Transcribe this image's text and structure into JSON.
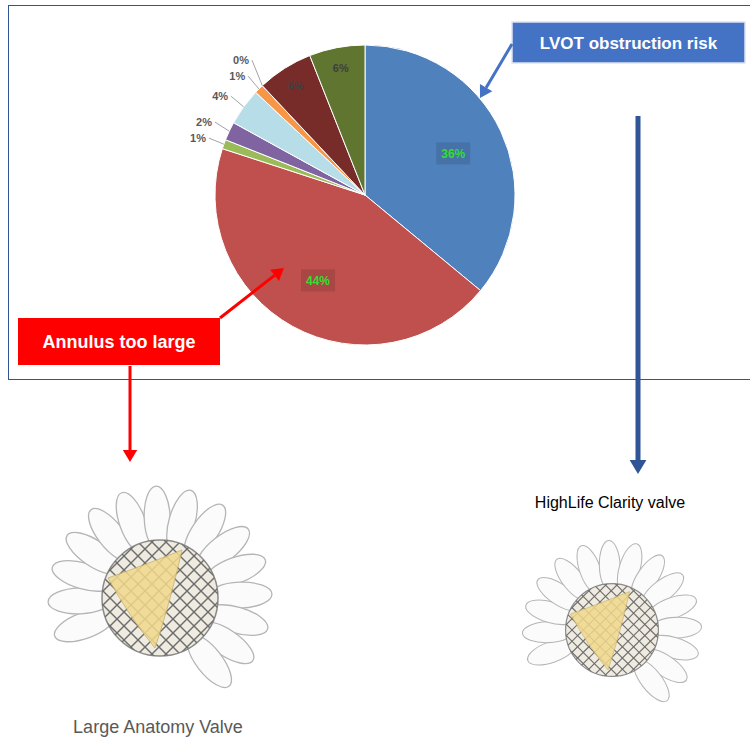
{
  "chart_data": {
    "type": "pie",
    "values": [
      36,
      44,
      1,
      2,
      4,
      1,
      0,
      6,
      6
    ],
    "value_labels": [
      "36%",
      "44%",
      "1%",
      "2%",
      "4%",
      "1%",
      "0%",
      "6%",
      "6%"
    ],
    "colors": [
      "#4f81bd",
      "#c0504d",
      "#9bbb59",
      "#8064a2",
      "#b7dde8",
      "#f79646",
      "#1f497d",
      "#772c2a",
      "#5f7530"
    ],
    "data_labels": true,
    "annotations": [
      "LVOT obstruction risk",
      "Annulus too large",
      "HighLife Clarity valve",
      "Large Anatomy Valve"
    ]
  }
}
